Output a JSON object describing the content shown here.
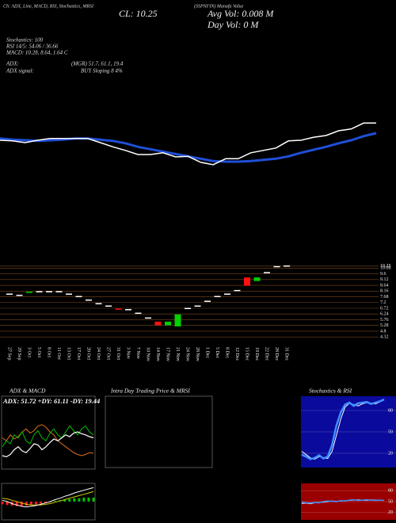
{
  "header": {
    "menu": "Ch: ADX, Line, MACD, RSI, Stochastics, MRSI",
    "symbol": "(SSPNFIN) Munafa Value",
    "close": "CL: 10.25",
    "avg_vol": "Avg Vol: 0.008  M",
    "day_vol": "Day Vol: 0  M"
  },
  "stats": [
    "Stochastics: 100",
    "RSI 14/5: 54.06 / 36.66",
    "MACD: 10.28, 8.64, 1.64  C"
  ],
  "adx": {
    "label": "ADX:",
    "value": "(MGR) 51.7, 61.1, 19.4",
    "signal_label": "ADX signal:",
    "signal": "BUY Sloping 8 4%"
  },
  "trend_panel": {
    "ylim": [
      0,
      100
    ],
    "price": {
      "color": "#ffffff",
      "values": [
        64,
        63,
        60,
        64,
        67,
        67,
        67,
        67,
        60,
        53,
        47,
        40,
        40,
        43,
        36,
        37,
        27,
        23,
        33,
        33,
        43,
        47,
        51,
        63,
        64,
        69,
        72,
        80,
        83,
        93,
        93
      ]
    },
    "average": {
      "color": "#1f4fd8",
      "values": [
        67,
        65,
        64,
        63,
        64,
        65,
        67,
        67,
        65,
        63,
        59,
        53,
        49,
        45,
        41,
        37,
        33,
        29,
        28,
        28,
        29,
        31,
        33,
        37,
        43,
        48,
        53,
        59,
        64,
        71,
        76
      ]
    }
  },
  "price_panel": {
    "ylim": [
      4.0,
      10.5
    ],
    "yticks": [
      10.25,
      10.08,
      9.6,
      9.12,
      8.64,
      8.16,
      7.68,
      7.2,
      6.72,
      6.24,
      5.76,
      5.28,
      4.8,
      4.32
    ],
    "grid_color": "#7a4a1e",
    "flat_color": "#ffffff",
    "up_color": "#00d000",
    "down_color": "#ff1010",
    "candles": [
      {
        "date": "27 Sep",
        "open": 7.9,
        "close": 7.9
      },
      {
        "date": "29 Sep",
        "open": 7.8,
        "close": 7.8
      },
      {
        "date": "3 Oct",
        "open": 8.0,
        "close": 8.1
      },
      {
        "date": "5 Oct",
        "open": 8.1,
        "close": 8.1
      },
      {
        "date": "8 Oct",
        "open": 8.1,
        "close": 8.1
      },
      {
        "date": "11 Oct",
        "open": 8.1,
        "close": 8.1
      },
      {
        "date": "13 Oct",
        "open": 7.9,
        "close": 7.9
      },
      {
        "date": "17 Oct",
        "open": 7.7,
        "close": 7.7
      },
      {
        "date": "20 Oct",
        "open": 7.4,
        "close": 7.4
      },
      {
        "date": "24 Oct",
        "open": 7.1,
        "close": 7.1
      },
      {
        "date": "27 Oct",
        "open": 6.9,
        "close": 6.9
      },
      {
        "date": "31 Oct",
        "open": 6.7,
        "close": 6.6
      },
      {
        "date": "3 Nov",
        "open": 6.6,
        "close": 6.6
      },
      {
        "date": "7 Nov",
        "open": 6.3,
        "close": 6.3
      },
      {
        "date": "10 Nov",
        "open": 5.9,
        "close": 5.9
      },
      {
        "date": "14 Nov",
        "open": 5.6,
        "close": 5.3
      },
      {
        "date": "17 Nov",
        "open": 5.3,
        "close": 5.6
      },
      {
        "date": "21 Nov",
        "open": 5.2,
        "close": 6.2
      },
      {
        "date": "24 Nov",
        "open": 6.7,
        "close": 6.7
      },
      {
        "date": "28 Nov",
        "open": 6.9,
        "close": 6.9
      },
      {
        "date": "1 Dec",
        "open": 7.3,
        "close": 7.3
      },
      {
        "date": "5 Dec",
        "open": 7.7,
        "close": 7.7
      },
      {
        "date": "8 Dec",
        "open": 7.9,
        "close": 7.9
      },
      {
        "date": "12 Dec",
        "open": 8.2,
        "close": 8.2
      },
      {
        "date": "15 Dec",
        "open": 9.3,
        "close": 8.6
      },
      {
        "date": "19 Dec",
        "open": 9.0,
        "close": 9.3
      },
      {
        "date": "22 Dec",
        "open": 9.7,
        "close": 9.7
      },
      {
        "date": "28 Dec",
        "open": 10.2,
        "close": 10.2
      },
      {
        "date": "31 Dec",
        "open": 10.25,
        "close": 10.25
      }
    ]
  },
  "panels": {
    "adx_macd_title": "ADX & MACD",
    "intraday_title": "Intra Day Trading Price & MRSI",
    "stoch_rsi_title": "Stochastics & RSI"
  },
  "adx_panel": {
    "caption": "ADX: 51.72 +DY: 61.11 -DY: 19.44",
    "ylim": [
      0,
      100
    ],
    "adx": {
      "color": "#ffffff",
      "values": [
        20,
        18,
        22,
        30,
        35,
        28,
        25,
        32,
        40,
        38,
        30,
        35,
        42,
        48,
        45,
        50,
        55,
        52,
        58,
        60,
        57,
        55,
        52,
        50
      ]
    },
    "plus_dy": {
      "color": "#00c000",
      "values": [
        35,
        45,
        40,
        55,
        50,
        60,
        45,
        40,
        55,
        62,
        50,
        45,
        58,
        65,
        55,
        50,
        60,
        70,
        62,
        55,
        65,
        70,
        60,
        55
      ]
    },
    "minus_dy": {
      "color": "#e07020",
      "values": [
        50,
        45,
        55,
        48,
        52,
        60,
        65,
        58,
        62,
        70,
        72,
        68,
        60,
        55,
        45,
        40,
        35,
        30,
        25,
        22,
        20,
        22,
        25,
        24
      ]
    }
  },
  "macd_panel": {
    "ylim": [
      -2.5,
      2.5
    ],
    "histogram": [
      -0.4,
      -0.5,
      -0.6,
      -0.7,
      -0.7,
      -0.6,
      -0.5,
      -0.4,
      -0.3,
      -0.2,
      -0.1,
      0.1,
      0.2,
      0.3,
      0.4,
      0.5,
      0.5,
      0.6,
      0.6,
      0.6
    ],
    "up_color": "#00c000",
    "down_color": "#ff2020",
    "macd": {
      "color": "#ffffff",
      "values": [
        0.2,
        0,
        -0.3,
        -0.5,
        -0.7,
        -0.8,
        -0.7,
        -0.6,
        -0.4,
        -0.2,
        0,
        0.3,
        0.5,
        0.8,
        1.0,
        1.3,
        1.5,
        1.7,
        1.9,
        2.1
      ]
    },
    "signal": {
      "color": "#d0d000",
      "values": [
        0.5,
        0.4,
        0.2,
        0,
        -0.2,
        -0.4,
        -0.5,
        -0.5,
        -0.5,
        -0.4,
        -0.3,
        -0.1,
        0.1,
        0.3,
        0.5,
        0.7,
        0.9,
        1.1,
        1.3,
        1.5
      ]
    }
  },
  "stoch_panel": {
    "ylim": [
      0,
      100
    ],
    "yticks": [
      80,
      50,
      20
    ],
    "background": "#0a0a9c",
    "fast": {
      "color": "#3f8fff",
      "values": [
        15,
        12,
        8,
        10,
        14,
        9,
        12,
        30,
        60,
        80,
        92,
        95,
        90,
        94,
        95,
        96,
        93,
        95,
        97,
        100
      ]
    },
    "slow": {
      "color": "#ffffff",
      "values": [
        20,
        15,
        10,
        8,
        12,
        10,
        9,
        20,
        45,
        70,
        88,
        94,
        92,
        90,
        93,
        95,
        94,
        93,
        96,
        99
      ]
    }
  },
  "rsi_panel": {
    "ylim": [
      0,
      100
    ],
    "yticks": [
      80,
      50,
      20
    ],
    "background": "#9a0000",
    "rsi": {
      "color": "#3f8fff",
      "values": [
        48,
        46,
        45,
        47,
        46,
        50,
        52,
        51,
        50,
        53,
        52,
        55,
        56,
        54,
        55,
        56,
        55,
        54,
        55,
        54
      ]
    },
    "mrsi": {
      "color": "#ffffff",
      "values": [
        44,
        45,
        43,
        46,
        47,
        48,
        50,
        52,
        51,
        52,
        53,
        54,
        55,
        56,
        55,
        54,
        56,
        55,
        54,
        54
      ]
    }
  }
}
